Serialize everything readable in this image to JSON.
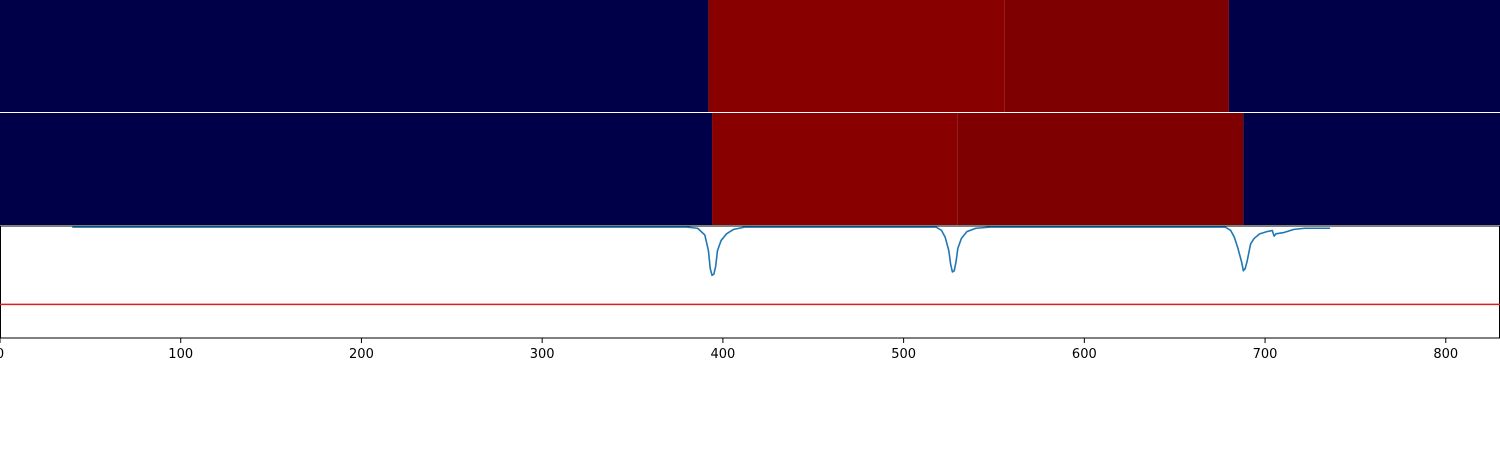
{
  "chart_data": {
    "type": "heatmap",
    "x_range": [
      0,
      830
    ],
    "x_ticks": [
      0,
      100,
      200,
      300,
      400,
      500,
      600,
      700,
      800
    ],
    "x_tick_labels": [
      "0",
      "100",
      "200",
      "300",
      "400",
      "500",
      "600",
      "700",
      "800"
    ],
    "colors": {
      "low": "#000048",
      "high_a": "#880000",
      "high_b": "#7e0000",
      "trace": "#1f77b4",
      "threshold": "#e31a1c",
      "divider": "#ffffff"
    },
    "bands": [
      {
        "segments": [
          {
            "x0": 0,
            "x1": 392,
            "level": "low"
          },
          {
            "x0": 392,
            "x1": 556,
            "level": "high_a"
          },
          {
            "x0": 556,
            "x1": 680,
            "level": "high_b"
          },
          {
            "x0": 680,
            "x1": 830,
            "level": "low"
          }
        ]
      },
      {
        "segments": [
          {
            "x0": 0,
            "x1": 394,
            "level": "low"
          },
          {
            "x0": 394,
            "x1": 530,
            "level": "high_a"
          },
          {
            "x0": 530,
            "x1": 688,
            "level": "high_b"
          },
          {
            "x0": 688,
            "x1": 830,
            "level": "low"
          }
        ]
      }
    ],
    "trace": {
      "y_range": [
        0,
        1
      ],
      "points": [
        [
          40,
          0.99
        ],
        [
          120,
          0.99
        ],
        [
          200,
          0.99
        ],
        [
          300,
          0.99
        ],
        [
          330,
          0.99
        ],
        [
          380,
          0.99
        ],
        [
          386,
          0.98
        ],
        [
          390,
          0.92
        ],
        [
          392,
          0.78
        ],
        [
          393,
          0.62
        ],
        [
          394,
          0.56
        ],
        [
          395,
          0.57
        ],
        [
          396,
          0.64
        ],
        [
          397,
          0.78
        ],
        [
          399,
          0.87
        ],
        [
          402,
          0.93
        ],
        [
          406,
          0.97
        ],
        [
          412,
          0.99
        ],
        [
          500,
          0.99
        ],
        [
          518,
          0.99
        ],
        [
          521,
          0.96
        ],
        [
          523,
          0.9
        ],
        [
          525,
          0.78
        ],
        [
          526,
          0.66
        ],
        [
          527,
          0.59
        ],
        [
          528,
          0.6
        ],
        [
          529,
          0.68
        ],
        [
          530,
          0.8
        ],
        [
          532,
          0.89
        ],
        [
          535,
          0.95
        ],
        [
          540,
          0.98
        ],
        [
          548,
          0.99
        ],
        [
          640,
          0.99
        ],
        [
          678,
          0.99
        ],
        [
          681,
          0.96
        ],
        [
          683,
          0.9
        ],
        [
          685,
          0.8
        ],
        [
          687,
          0.68
        ],
        [
          688,
          0.6
        ],
        [
          689,
          0.62
        ],
        [
          690,
          0.68
        ],
        [
          691,
          0.76
        ],
        [
          692,
          0.84
        ],
        [
          694,
          0.89
        ],
        [
          697,
          0.93
        ],
        [
          701,
          0.95
        ],
        [
          704,
          0.96
        ],
        [
          705,
          0.91
        ],
        [
          706,
          0.93
        ],
        [
          710,
          0.94
        ],
        [
          716,
          0.97
        ],
        [
          722,
          0.98
        ],
        [
          736,
          0.98
        ]
      ]
    },
    "threshold": {
      "y": 0.3
    }
  }
}
